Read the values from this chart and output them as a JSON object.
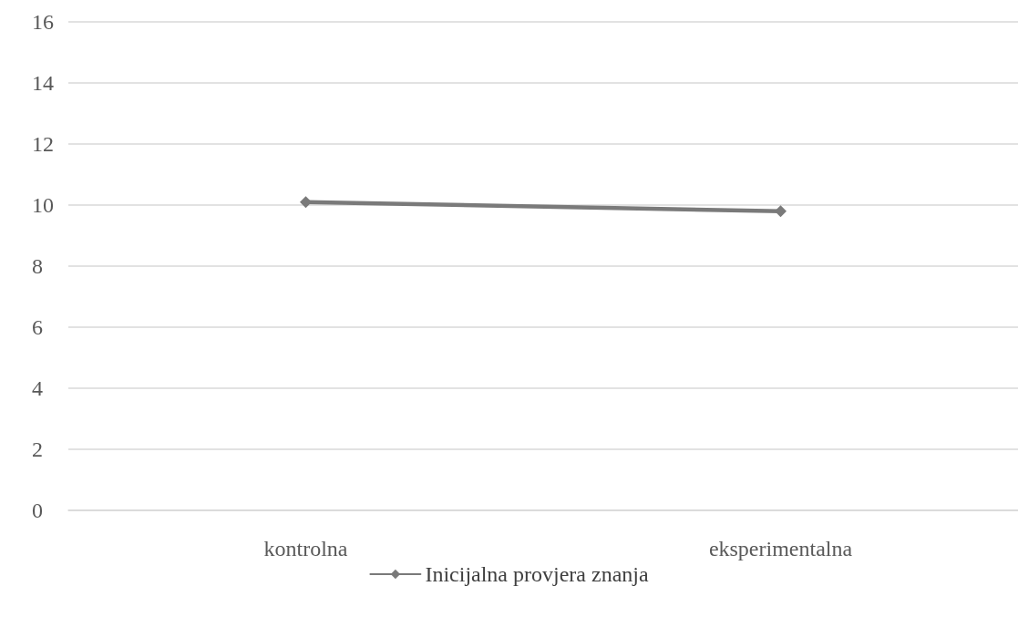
{
  "chart_data": {
    "type": "line",
    "categories": [
      "kontrolna",
      "eksperimentalna"
    ],
    "series": [
      {
        "name": "Inicijalna provjera znanja",
        "color": "#7a7a7a",
        "values": [
          10.1,
          9.8
        ]
      }
    ],
    "ylim": [
      0,
      16
    ],
    "yticks": [
      0,
      2,
      4,
      6,
      8,
      10,
      12,
      14,
      16
    ],
    "grid": "y",
    "legend": "bottom",
    "marker": "diamond",
    "line_style": "solid"
  }
}
